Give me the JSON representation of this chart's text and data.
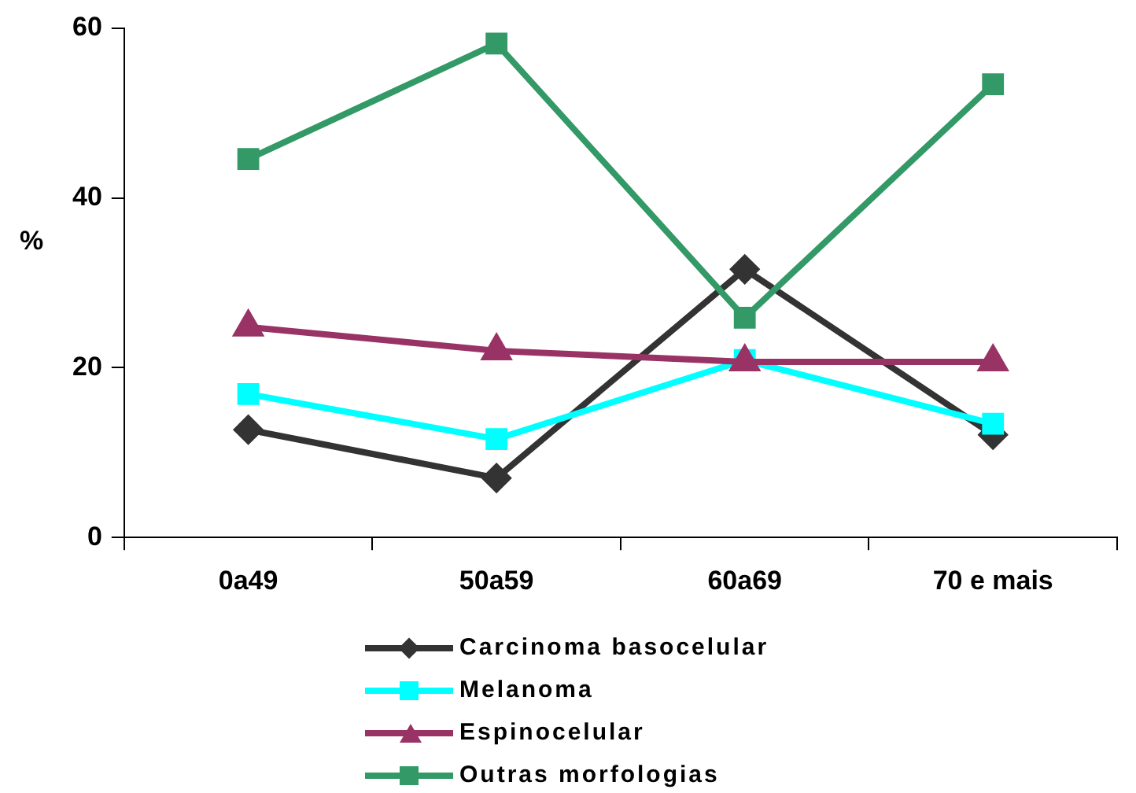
{
  "chart_data": {
    "type": "line",
    "ylabel": "%",
    "categories": [
      "0a49",
      "50a59",
      "60a69",
      "70 e mais"
    ],
    "series": [
      {
        "name": "Carcinoma basocelular",
        "color": "#333333",
        "marker": "diamond",
        "values": [
          12.7,
          7,
          31.6,
          12.1
        ]
      },
      {
        "name": "Melanoma",
        "color": "#00ffff",
        "marker": "square",
        "values": [
          16.9,
          11.6,
          20.9,
          13.4
        ]
      },
      {
        "name": "Espinocelular",
        "color": "#993366",
        "marker": "triangle",
        "values": [
          24.8,
          22,
          20.7,
          20.7
        ]
      },
      {
        "name": "Outras morfologias",
        "color": "#339966",
        "marker": "square",
        "values": [
          44.6,
          58.2,
          25.9,
          53.4
        ]
      }
    ],
    "ylim": [
      0,
      60
    ],
    "yticks": [
      0,
      20,
      40,
      60
    ],
    "grid": false,
    "legend": "bottom",
    "line_style": "solid"
  }
}
